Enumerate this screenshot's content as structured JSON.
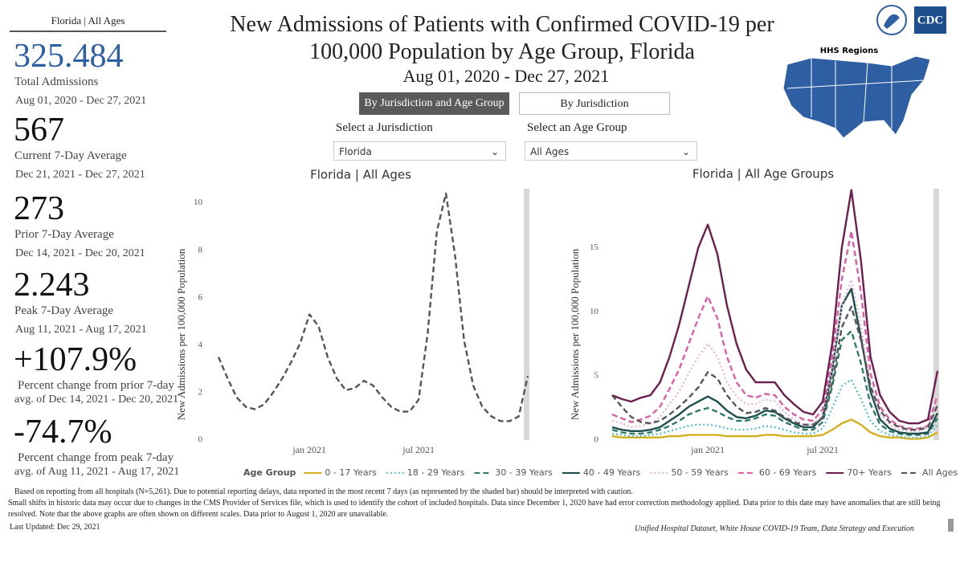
{
  "panel": {
    "header": "Florida | All Ages",
    "stats": [
      {
        "value": "325.484",
        "label": "Total Admissions",
        "detail": "Aug 01, 2020 - Dec 27, 2021"
      },
      {
        "value": "567",
        "label": "Current 7-Day Average",
        "detail": "Dec 21, 2021 - Dec 27, 2021"
      },
      {
        "value": "273",
        "label": "Prior 7-Day Average",
        "detail": "Dec 14, 2021 - Dec 20, 2021"
      },
      {
        "value": "2.243",
        "label": "Peak 7-Day Average",
        "detail": "Aug 11, 2021 - Aug 17, 2021"
      },
      {
        "value": "+107.9%",
        "label": "Percent change from prior 7-day",
        "detail": "avg. of Dec 14, 2021 - Dec 20, 2021"
      },
      {
        "value": "-74.7%",
        "label": "Percent change from peak 7-day",
        "detail": "avg. of Aug 11, 2021 - Aug 17, 2021"
      }
    ]
  },
  "header": {
    "title": "New Admissions of Patients with Confirmed COVID-19 per 100,000 Population by Age Group, Florida",
    "date_range": "Aug 01, 2020 - Dec 27, 2021",
    "logo": "CDC",
    "map_label": "HHS Regions"
  },
  "controls": {
    "tabs": [
      "By Jurisdiction and Age Group",
      "By Jurisdiction"
    ],
    "filters": [
      {
        "label": "Select a Jurisdiction",
        "value": "Florida"
      },
      {
        "label": "Select an Age Group",
        "value": "All Ages"
      }
    ]
  },
  "chart_data": [
    {
      "type": "line",
      "title": "Florida | All Ages",
      "y_label": "New Admissions per 100,000 Population",
      "categories": [
        null,
        null,
        null,
        null,
        null,
        null,
        null,
        null,
        null,
        null,
        "jan 2021",
        null,
        null,
        null,
        null,
        null,
        null,
        null,
        null,
        null,
        null,
        null,
        "jul 2021",
        null,
        null,
        null,
        null,
        null,
        null,
        null,
        null,
        null,
        null,
        null,
        null
      ],
      "ylim": [
        0,
        10.6
      ],
      "yticks": [
        0,
        2,
        4,
        6,
        8,
        10
      ],
      "series": [
        {
          "name": "All Ages",
          "color": "#555555",
          "style": "dashed",
          "values": [
            3.5,
            2.6,
            1.8,
            1.4,
            1.3,
            1.5,
            2.0,
            2.6,
            3.3,
            4.1,
            5.3,
            4.8,
            3.5,
            2.6,
            2.1,
            2.2,
            2.5,
            2.3,
            1.8,
            1.4,
            1.2,
            1.2,
            1.7,
            4.5,
            8.8,
            10.4,
            7.8,
            4.2,
            2.3,
            1.4,
            1.0,
            0.8,
            0.8,
            1.0,
            2.7
          ]
        }
      ]
    },
    {
      "type": "line",
      "title": "Florida | All Age Groups",
      "y_label": "New Admissions per 100,000 Population",
      "legend_title": "Age Group",
      "categories": [
        null,
        null,
        null,
        null,
        null,
        null,
        null,
        null,
        null,
        null,
        "jan 2021",
        null,
        null,
        null,
        null,
        null,
        null,
        null,
        null,
        null,
        null,
        null,
        "jul 2021",
        null,
        null,
        null,
        null,
        null,
        null,
        null,
        null,
        null,
        null,
        null,
        null
      ],
      "ylim": [
        0,
        19.6
      ],
      "yticks": [
        0,
        5,
        10,
        15
      ],
      "series": [
        {
          "name": "0 - 17 Years",
          "color": "#d4b020",
          "style": "solid",
          "values": [
            0.3,
            0.2,
            0.2,
            0.2,
            0.2,
            0.2,
            0.3,
            0.3,
            0.4,
            0.4,
            0.4,
            0.4,
            0.3,
            0.3,
            0.3,
            0.3,
            0.4,
            0.4,
            0.3,
            0.3,
            0.3,
            0.3,
            0.4,
            0.8,
            1.3,
            1.6,
            1.2,
            0.6,
            0.3,
            0.2,
            0.2,
            0.1,
            0.1,
            0.2,
            0.6
          ]
        },
        {
          "name": "18 - 29 Years",
          "color": "#5fc0c8",
          "style": "dotted",
          "values": [
            0.5,
            0.4,
            0.3,
            0.3,
            0.4,
            0.5,
            0.7,
            0.9,
            1.1,
            1.2,
            1.2,
            1.1,
            0.9,
            0.8,
            0.8,
            0.9,
            1.1,
            1.0,
            0.8,
            0.6,
            0.5,
            0.5,
            0.9,
            2.5,
            4.2,
            4.7,
            3.2,
            1.5,
            0.7,
            0.4,
            0.3,
            0.2,
            0.2,
            0.3,
            1.2
          ]
        },
        {
          "name": "30 - 39 Years",
          "color": "#2f7a6b",
          "style": "dashed",
          "values": [
            0.8,
            0.6,
            0.5,
            0.5,
            0.6,
            0.8,
            1.1,
            1.5,
            2.0,
            2.3,
            2.5,
            2.2,
            1.8,
            1.5,
            1.5,
            1.7,
            2.0,
            1.9,
            1.4,
            1.1,
            0.8,
            0.8,
            1.4,
            4.2,
            7.8,
            8.5,
            6.0,
            2.8,
            1.2,
            0.7,
            0.5,
            0.4,
            0.4,
            0.5,
            1.7
          ]
        },
        {
          "name": "40 - 49 Years",
          "color": "#1f4e4f",
          "style": "solid",
          "values": [
            1.0,
            0.8,
            0.7,
            0.7,
            0.8,
            1.0,
            1.5,
            2.0,
            2.6,
            3.0,
            3.4,
            3.0,
            2.3,
            1.8,
            1.7,
            1.9,
            2.3,
            2.2,
            1.7,
            1.3,
            1.0,
            1.0,
            1.8,
            5.5,
            10.5,
            11.8,
            8.0,
            3.8,
            1.6,
            0.9,
            0.6,
            0.5,
            0.5,
            0.6,
            2.1
          ]
        },
        {
          "name": "50 - 59 Years",
          "color": "#e6b8d8",
          "style": "dotted",
          "values": [
            1.5,
            1.3,
            1.0,
            1.1,
            1.3,
            1.8,
            2.8,
            3.8,
            5.2,
            6.5,
            7.5,
            6.5,
            4.5,
            3.4,
            2.8,
            2.8,
            3.2,
            3.0,
            2.2,
            1.6,
            1.2,
            1.2,
            2.0,
            5.8,
            10.5,
            12.5,
            9.0,
            4.2,
            2.0,
            1.2,
            0.8,
            0.7,
            0.7,
            0.9,
            2.8
          ]
        },
        {
          "name": "60 - 69 Years",
          "color": "#d95fa8",
          "style": "dashed",
          "values": [
            2.0,
            1.7,
            1.4,
            1.6,
            1.9,
            2.6,
            4.0,
            5.5,
            7.5,
            9.5,
            11.2,
            9.5,
            6.5,
            4.5,
            3.5,
            3.3,
            3.6,
            3.5,
            2.6,
            2.0,
            1.6,
            1.5,
            2.4,
            6.5,
            12.5,
            16.3,
            11.5,
            5.2,
            2.6,
            1.6,
            1.1,
            0.9,
            0.9,
            1.1,
            3.5
          ]
        },
        {
          "name": "70+ Years",
          "color": "#6b1f4f",
          "style": "solid",
          "values": [
            3.5,
            3.2,
            3.0,
            3.3,
            3.5,
            4.5,
            6.5,
            9.0,
            12.0,
            15.0,
            16.8,
            14.5,
            10.5,
            7.5,
            5.5,
            4.5,
            4.5,
            4.5,
            3.5,
            2.8,
            2.2,
            2.0,
            3.0,
            7.5,
            15.0,
            19.5,
            14.0,
            6.5,
            3.5,
            2.2,
            1.5,
            1.3,
            1.3,
            1.6,
            5.4
          ]
        },
        {
          "name": "All Ages",
          "color": "#555555",
          "style": "dashed",
          "values": [
            3.5,
            2.6,
            1.8,
            1.4,
            1.3,
            1.5,
            2.0,
            2.6,
            3.3,
            4.1,
            5.3,
            4.8,
            3.5,
            2.6,
            2.1,
            2.2,
            2.5,
            2.3,
            1.8,
            1.4,
            1.2,
            1.2,
            1.7,
            4.5,
            8.8,
            10.4,
            7.8,
            4.2,
            2.3,
            1.4,
            1.0,
            0.8,
            0.8,
            1.0,
            2.7
          ]
        }
      ]
    }
  ],
  "footer": {
    "notes": [
      "Based on reporting from all hospitals (N=5,261). Due to potential reporting delays, data reported in the most recent 7 days (as represented by the shaded bar) should be interpreted with caution.",
      "Small shifts in historic data may occur due to changes in the CMS Provider of Services file, which is used to identify the cohort of included hospitals. Data since December 1, 2020 have had error correction methodology applied. Data prior to this date may have anomalies that are still being resolved. Note that the above graphs are often shown on different scales. Data prior to August 1, 2020 are unavailable."
    ],
    "updated": "Last Updated: Dec 29, 2021",
    "source": "Unified Hospital Dataset, White House COVID-19 Team, Data Strategy and Execution"
  }
}
